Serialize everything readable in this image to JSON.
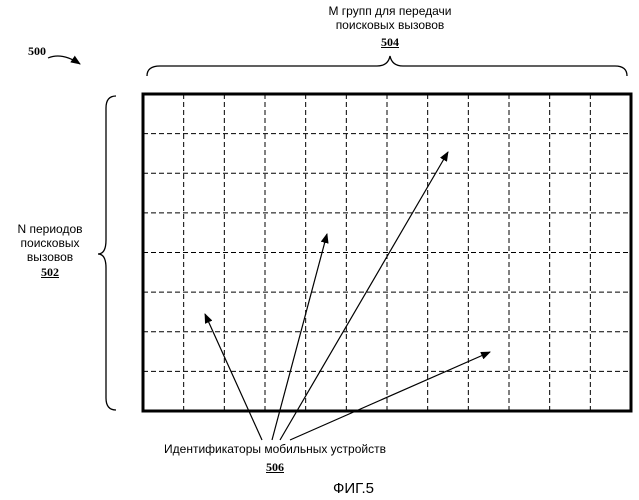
{
  "figure_label": "500",
  "top_label": {
    "line1": "M групп для передачи",
    "line2": "поисковых вызовов",
    "ref": "504"
  },
  "left_label": {
    "line1": "N периодов",
    "line2": "поисковых",
    "line3": "вызовов",
    "ref": "502"
  },
  "bottom_label": {
    "text": "Идентификаторы мобильных устройств",
    "ref": "506"
  },
  "caption": "ФИГ.5",
  "grid": {
    "columns": 12,
    "rows": 8
  }
}
